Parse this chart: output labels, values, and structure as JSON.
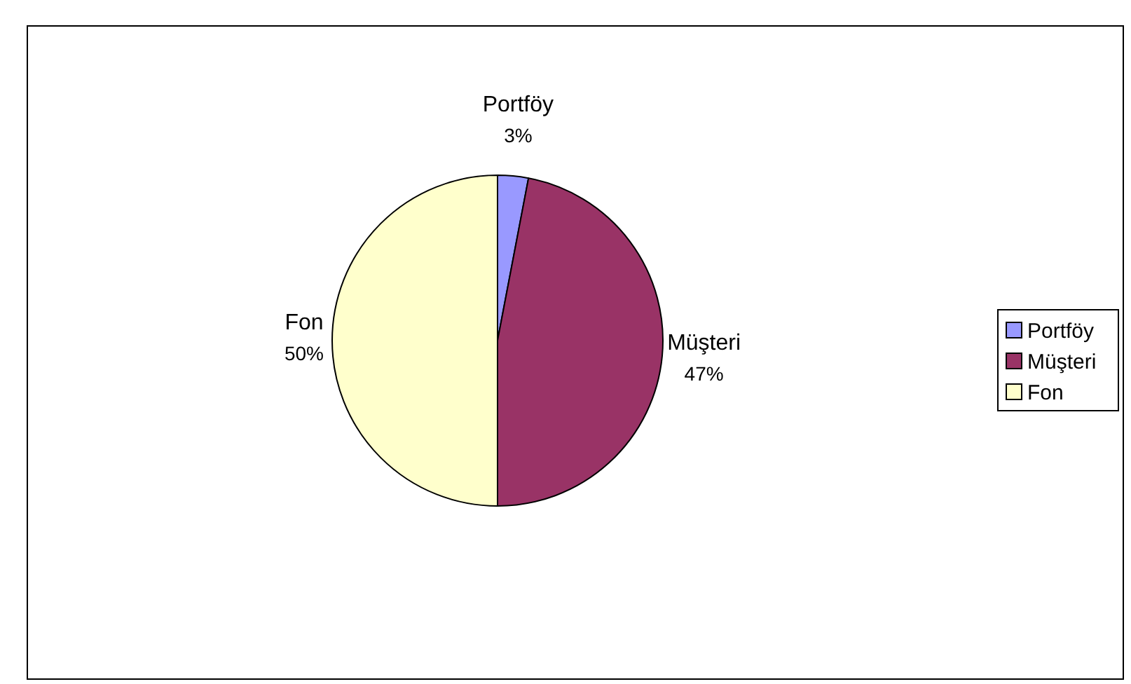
{
  "chart_data": {
    "type": "pie",
    "categories": [
      "Portföy",
      "Müşteri",
      "Fon"
    ],
    "values": [
      3,
      47,
      50
    ],
    "colors": [
      "#9999ff",
      "#993366",
      "#ffffcc"
    ],
    "value_labels": [
      "3%",
      "47%",
      "50%"
    ],
    "legend": "right"
  }
}
